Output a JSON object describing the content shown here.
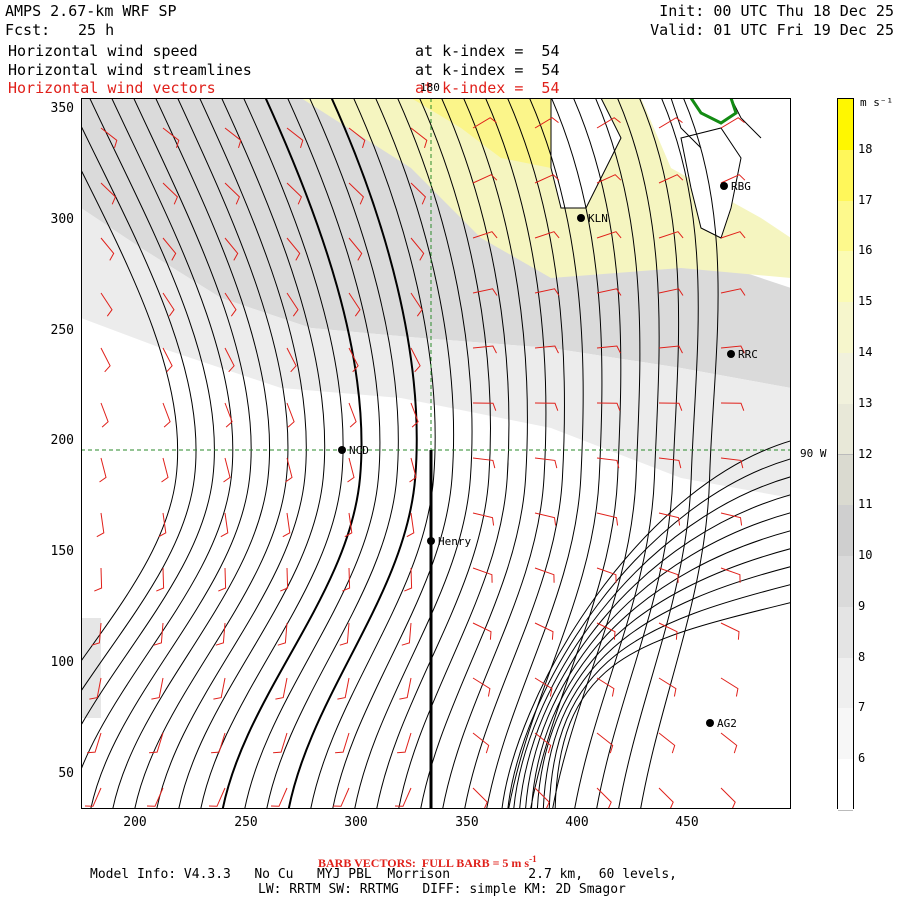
{
  "header": {
    "model": "AMPS 2.67-km WRF SP",
    "fcst_label": "Fcst:",
    "fcst_value": "25 h",
    "init": "Init: 00 UTC Thu 18 Dec 25",
    "valid": "Valid: 01 UTC Fri 19 Dec 25"
  },
  "fields": [
    {
      "name": "Horizontal wind speed",
      "level": "at k-index =  54",
      "color": "#000000"
    },
    {
      "name": "Horizontal wind streamlines",
      "level": "at k-index =  54",
      "color": "#000000"
    },
    {
      "name": "Horizontal wind vectors",
      "level": "at k-index =  54",
      "color": "#e0201a"
    }
  ],
  "map": {
    "meridian_label": "180",
    "parallel_label": "90 W",
    "stations": [
      {
        "name": "NCD"
      },
      {
        "name": "Henry"
      },
      {
        "name": "KLN"
      },
      {
        "name": "RBG"
      },
      {
        "name": "RRC"
      },
      {
        "name": "AG2"
      }
    ],
    "x_ticks": [
      "200",
      "250",
      "300",
      "350",
      "400",
      "450"
    ],
    "y_ticks": [
      "350",
      "300",
      "250",
      "200",
      "150",
      "100",
      "50"
    ]
  },
  "colorbar": {
    "unit": "m s⁻¹",
    "labels": [
      "18",
      "17",
      "16",
      "15",
      "14",
      "13",
      "12",
      "11",
      "10",
      "9",
      "8",
      "7",
      "6"
    ],
    "colors": [
      "#fff700",
      "#fff75a",
      "#fdf98c",
      "#fbfbb4",
      "#f6f6cc",
      "#f1f1dc",
      "#e8e8d8",
      "#dadad0",
      "#cfcfcf",
      "#dadada",
      "#e4e4e4",
      "#efefef",
      "#f7f7f7",
      "#ffffff"
    ]
  },
  "footer": {
    "barb_text": "BARB VECTORS:  FULL BARB = 5 m s",
    "barb_exp": "-1",
    "model_info_1": "Model Info: V4.3.3   No Cu   MYJ PBL  Morrison          2.7 km,  60 levels,",
    "model_info_2": "LW: RRTM SW: RRTMG   DIFF: simple KM: 2D Smagor"
  }
}
